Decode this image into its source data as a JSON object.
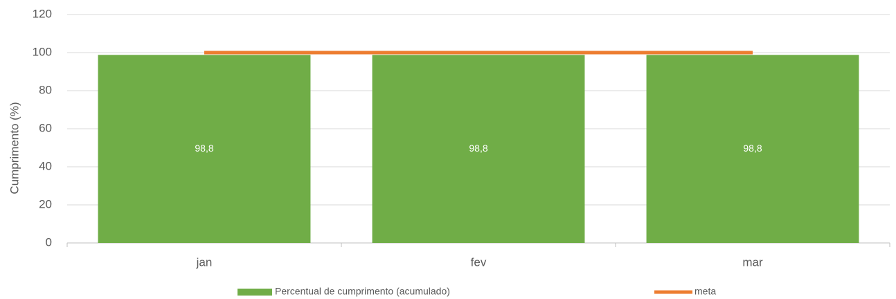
{
  "chart_data": {
    "type": "combo",
    "categories": [
      "jan",
      "fev",
      "mar"
    ],
    "series": [
      {
        "name": "Percentual de cumprimento (acumulado)",
        "type": "bar",
        "color": "#70ad47",
        "values": [
          98.8,
          98.8,
          98.8
        ],
        "value_labels": [
          "98,8",
          "98,8",
          "98,8"
        ]
      },
      {
        "name": "meta",
        "type": "line",
        "color": "#ed7d31",
        "values": [
          100,
          100,
          100
        ]
      }
    ],
    "ylabel": "Cumprimento (%)",
    "ylim": [
      0,
      120
    ],
    "yticks": [
      0,
      20,
      40,
      60,
      80,
      100,
      120
    ],
    "grid": true,
    "legend": "bottom"
  }
}
